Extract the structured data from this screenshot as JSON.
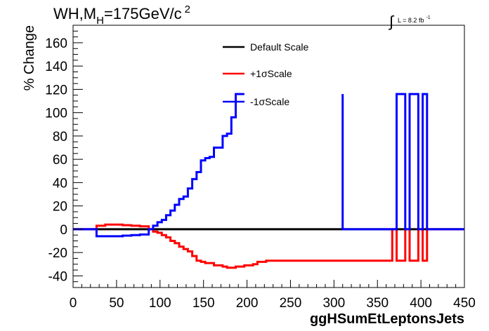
{
  "chart_data": {
    "type": "line",
    "title_main": "WH,M",
    "title_sub": "H",
    "title_rest": "=175GeV/c",
    "title_sup": "2",
    "lumi_main": "L = 8.2 fb",
    "lumi_sup": "-1",
    "xlabel": "ggHSumEtLeptonsJets",
    "ylabel": "% Change",
    "xlim": [
      0,
      450
    ],
    "ylim": [
      -50,
      175
    ],
    "x_ticks": [
      0,
      50,
      100,
      150,
      200,
      250,
      300,
      350,
      400,
      450
    ],
    "y_ticks": [
      -40,
      -20,
      0,
      20,
      40,
      60,
      80,
      100,
      120,
      140,
      160
    ],
    "legend": [
      {
        "label": "Default Scale",
        "color": "#000000"
      },
      {
        "label": "+1σScale",
        "color": "#ff0000"
      },
      {
        "label": "-1σScale",
        "color": "#0000ff"
      }
    ],
    "series": [
      {
        "key": "default",
        "color": "#000000",
        "x": [
          0,
          450
        ],
        "y": [
          0,
          0
        ]
      },
      {
        "key": "plus1sigma",
        "color": "#ff0000",
        "x": [
          0,
          27,
          37,
          47,
          57,
          67,
          77,
          82,
          87,
          92,
          97,
          102,
          107,
          112,
          117,
          122,
          127,
          132,
          137,
          142,
          147,
          152,
          157,
          162,
          167,
          172,
          177,
          182,
          187,
          192,
          197,
          202,
          207,
          212,
          217,
          222,
          227,
          232,
          237,
          367,
          372,
          377,
          382,
          387,
          392,
          397,
          402,
          407,
          450
        ],
        "y": [
          0,
          3,
          4,
          4,
          3.5,
          3,
          2.5,
          2.5,
          0,
          -2,
          -3,
          -5,
          -7,
          -10,
          -12,
          -15,
          -17,
          -19,
          -23,
          -27,
          -28,
          -29,
          -29,
          -31,
          -31,
          -32,
          -33,
          -33,
          -32,
          -32,
          -31,
          -31,
          -30,
          -28,
          -28,
          -27,
          -27,
          -27,
          -27,
          0,
          -27,
          -27,
          0,
          -27,
          -27,
          0,
          -27,
          0,
          0
        ]
      },
      {
        "key": "minus1sigma",
        "color": "#0000ff",
        "x": [
          0,
          27,
          37,
          47,
          57,
          67,
          77,
          82,
          87,
          92,
          97,
          102,
          107,
          112,
          117,
          122,
          127,
          132,
          137,
          142,
          147,
          152,
          157,
          162,
          167,
          172,
          177,
          182,
          187,
          192,
          197,
          202,
          367,
          372,
          377,
          382,
          387,
          392,
          397,
          402,
          407,
          450
        ],
        "y": [
          0,
          -6,
          -6,
          -6,
          -5.5,
          -5,
          -4.5,
          -4.5,
          0,
          3,
          6,
          8,
          12,
          16,
          21,
          26,
          28,
          35,
          43,
          49,
          59,
          61,
          62,
          70,
          70,
          80,
          82,
          96,
          116,
          116,
          116,
          116,
          0,
          116,
          116,
          0,
          116,
          116,
          0,
          116,
          0,
          0
        ],
        "gap": [
          197,
          310
        ]
      }
    ]
  }
}
